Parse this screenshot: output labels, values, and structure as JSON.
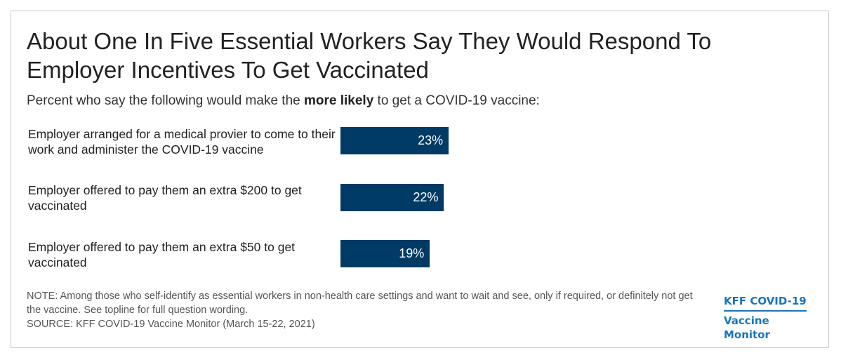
{
  "colors": {
    "bar": "#003b66",
    "logo": "#1a75bb"
  },
  "title": "About One In Five Essential Workers Say They Would Respond To Employer Incentives To Get Vaccinated",
  "subtitle": {
    "prefix": "Percent who say the following would make the ",
    "bold": "more likely",
    "suffix": " to get a COVID-19 vaccine:"
  },
  "chart_data": {
    "type": "bar",
    "orientation": "horizontal",
    "categories": [
      "Employer arranged for a medical provier to come to their work and administer the COVID-19 vaccine",
      "Employer offered to pay them an extra $200 to get vaccinated",
      "Employer offered to pay them an extra $50 to get vaccinated"
    ],
    "values": [
      23,
      22,
      19
    ],
    "value_labels": [
      "23%",
      "22%",
      "19%"
    ],
    "xlim": [
      0,
      100
    ],
    "grid": false
  },
  "note": "NOTE: Among those who self-identify as essential workers in non-health care settings and want to wait and see, only if required, or definitely not get the vaccine. See topline for full question wording.",
  "source": "SOURCE: KFF COVID-19 Vaccine Monitor (March 15-22, 2021)",
  "logo": {
    "line1": "KFF COVID-19",
    "line2": "Vaccine Monitor"
  }
}
